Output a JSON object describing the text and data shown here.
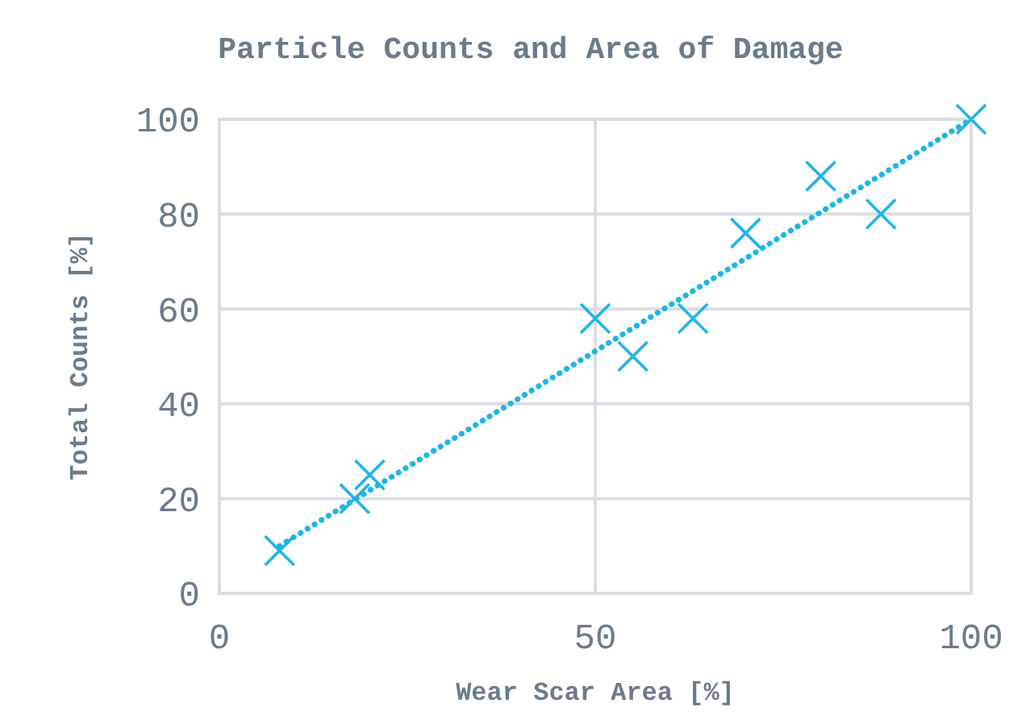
{
  "chart_data": {
    "type": "scatter",
    "title": "Particle Counts and Area of Damage",
    "xlabel": "Wear Scar Area [%]",
    "ylabel": "Total Counts [%]",
    "xlim": [
      0,
      100
    ],
    "xticks": [
      0,
      50,
      100
    ],
    "ylim": [
      0,
      100
    ],
    "yticks": [
      0,
      20,
      40,
      60,
      80,
      100
    ],
    "grid": true,
    "marker": "cross",
    "series": [
      {
        "color": "#1fb4e8",
        "x": [
          8,
          18,
          20,
          50,
          55,
          63,
          70,
          80,
          88,
          100
        ],
        "values": [
          9,
          20,
          25,
          58,
          50,
          58,
          76,
          88,
          80,
          100
        ]
      },
      {
        "type": "line",
        "color": "#1fb4e8",
        "line_style": "dotted",
        "marker": "none",
        "x": [
          8,
          100
        ],
        "values": [
          10,
          100
        ]
      }
    ]
  }
}
